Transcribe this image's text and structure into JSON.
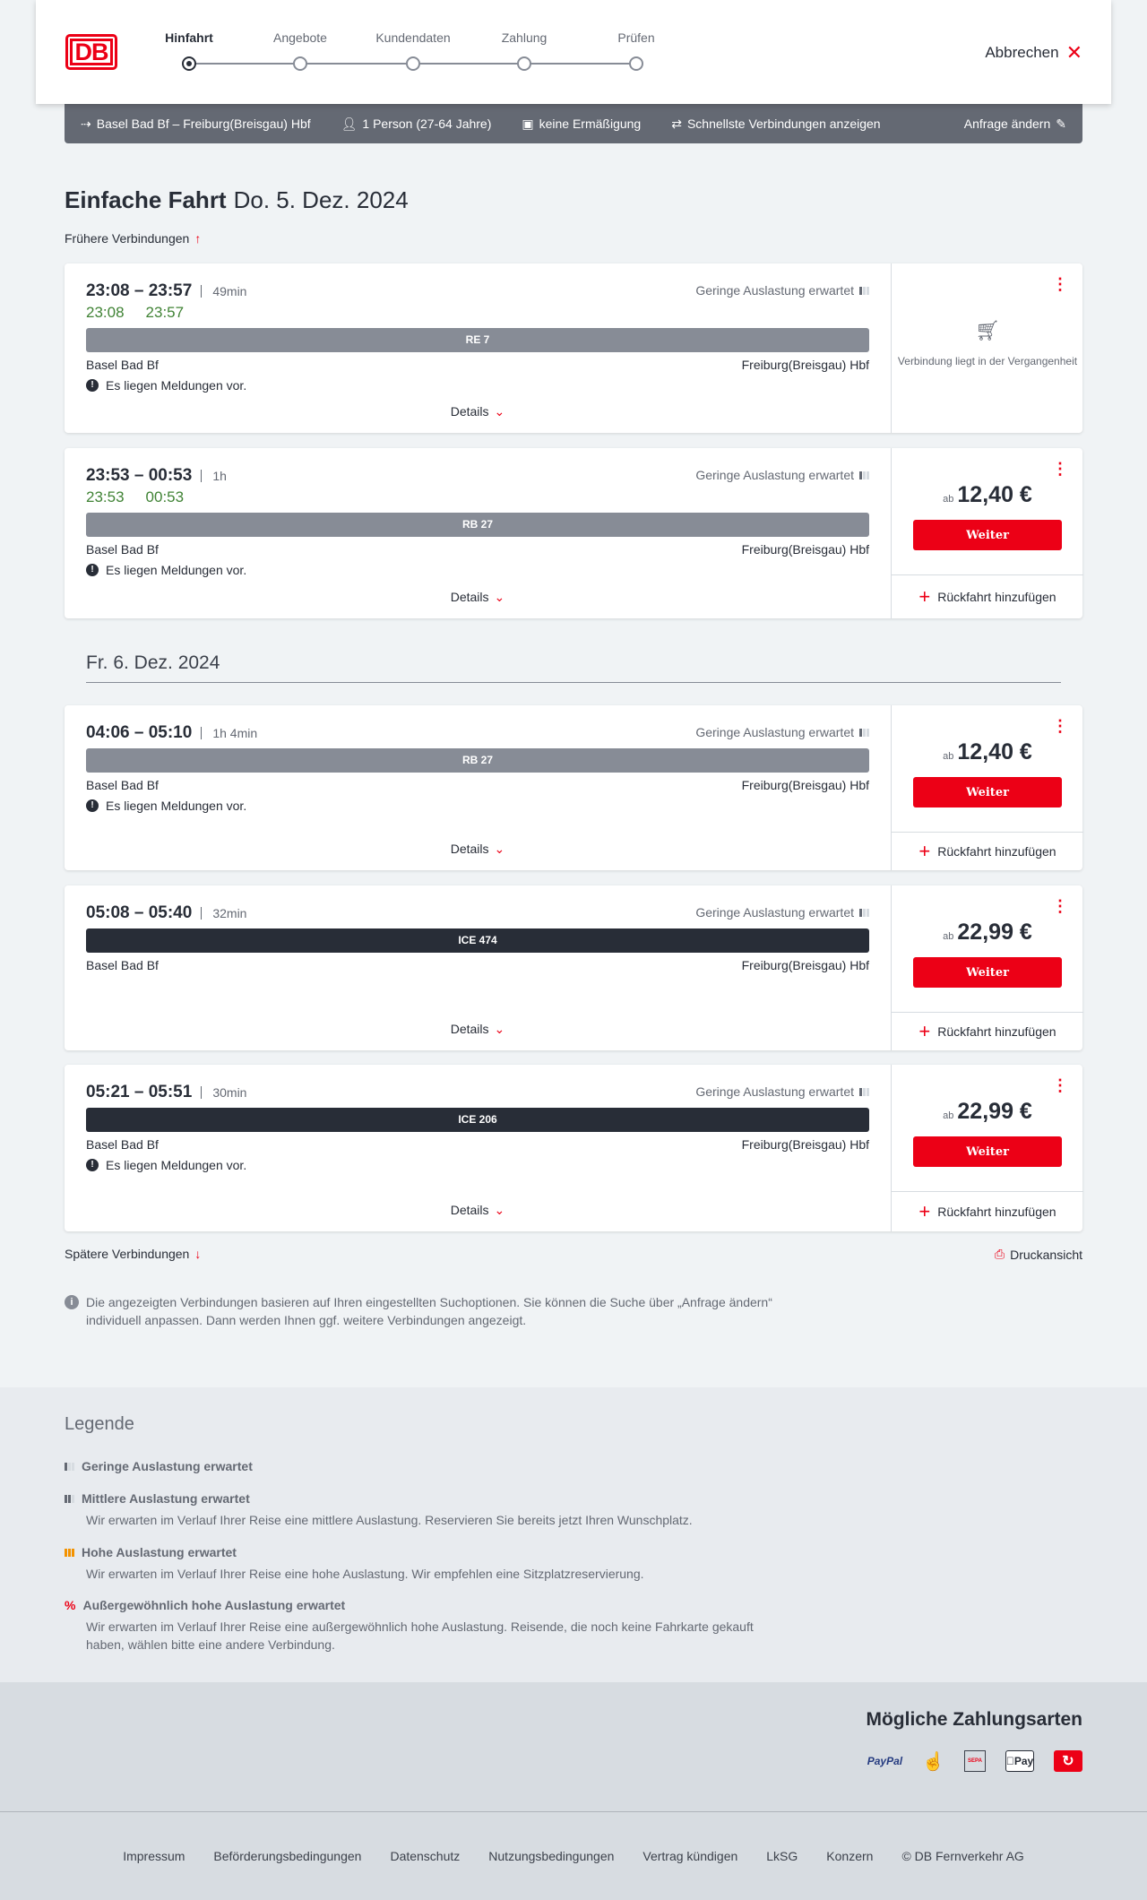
{
  "header": {
    "logo": "DB",
    "steps": [
      "Hinfahrt",
      "Angebote",
      "Kundendaten",
      "Zahlung",
      "Prüfen"
    ],
    "active_step": 0,
    "cancel": "Abbrechen"
  },
  "summary": {
    "route": "Basel Bad Bf – Freiburg(Breisgau) Hbf",
    "travelers": "1 Person (27-64 Jahre)",
    "discount": "keine Ermäßigung",
    "filter": "Schnellste Verbindungen anzeigen",
    "edit": "Anfrage ändern"
  },
  "page": {
    "title": "Einfache Fahrt",
    "date": "Do. 5. Dez. 2024",
    "earlier": "Frühere Verbindungen",
    "later": "Spätere Verbindungen",
    "print": "Druckansicht",
    "next_date": "Fr. 6. Dez. 2024",
    "info": "Die angezeigten Verbindungen basieren auf Ihren eingestellten Suchoptionen. Sie können die Suche über „Anfrage ändern“ individuell anpassen. Dann werden Ihnen ggf. weitere Verbindungen angezeigt."
  },
  "common": {
    "details": "Details",
    "price_prefix": "ab",
    "continue": "Weiter",
    "return": "Rückfahrt hinzufügen",
    "past": "Verbindung liegt in der Vergangenheit",
    "message": "Es liegen Meldungen vor.",
    "occupancy": "Geringe Auslastung erwartet"
  },
  "journeys": [
    {
      "times": "23:08 – 23:57",
      "duration": "49min",
      "actual_dep": "23:08",
      "actual_arr": "23:57",
      "train": "RE 7",
      "from": "Basel Bad Bf",
      "to": "Freiburg(Breisgau) Hbf",
      "has_message": true,
      "price": null
    },
    {
      "times": "23:53 – 00:53",
      "duration": "1h",
      "actual_dep": "23:53",
      "actual_arr": "00:53",
      "train": "RB 27",
      "from": "Basel Bad Bf",
      "to": "Freiburg(Breisgau) Hbf",
      "has_message": true,
      "price": "12,40 €"
    },
    {
      "times": "04:06 – 05:10",
      "duration": "1h 4min",
      "train": "RB 27",
      "from": "Basel Bad Bf",
      "to": "Freiburg(Breisgau) Hbf",
      "has_message": true,
      "price": "12,40 €"
    },
    {
      "times": "05:08 – 05:40",
      "duration": "32min",
      "train": "ICE 474",
      "from": "Basel Bad Bf",
      "to": "Freiburg(Breisgau) Hbf",
      "has_message": false,
      "price": "22,99 €"
    },
    {
      "times": "05:21 – 05:51",
      "duration": "30min",
      "train": "ICE 206",
      "from": "Basel Bad Bf",
      "to": "Freiburg(Breisgau) Hbf",
      "has_message": true,
      "price": "22,99 €"
    }
  ],
  "legend": {
    "title": "Legende",
    "items": [
      {
        "title": "Geringe Auslastung erwartet",
        "text": ""
      },
      {
        "title": "Mittlere Auslastung erwartet",
        "text": "Wir erwarten im Verlauf Ihrer Reise eine mittlere Auslastung. Reservieren Sie bereits jetzt Ihren Wunschplatz."
      },
      {
        "title": "Hohe Auslastung erwartet",
        "text": "Wir erwarten im Verlauf Ihrer Reise eine hohe Auslastung. Wir empfehlen eine Sitzplatzreservierung."
      },
      {
        "title": "Außergewöhnlich hohe Auslastung erwartet",
        "text": "Wir erwarten im Verlauf Ihrer Reise eine außergewöhnlich hohe Auslastung. Reisende, die noch keine Fahrkarte gekauft haben, wählen bitte eine andere Verbindung."
      }
    ]
  },
  "payment": {
    "title": "Mögliche Zahlungsarten",
    "methods": [
      "PayPal",
      "Kreditkarte",
      "SEPA",
      "Pay",
      "DB Bonus"
    ]
  },
  "footer": {
    "links": [
      "Impressum",
      "Beförderungsbedingungen",
      "Datenschutz",
      "Nutzungsbedingungen",
      "Vertrag kündigen",
      "LkSG",
      "Konzern",
      "© DB Fernverkehr AG"
    ]
  },
  "colors": {
    "brand": "#ec0016",
    "summary_bg": "#646973",
    "punctual": "#408335",
    "regional_train": "#878c96",
    "ice_train": "#282d37"
  }
}
